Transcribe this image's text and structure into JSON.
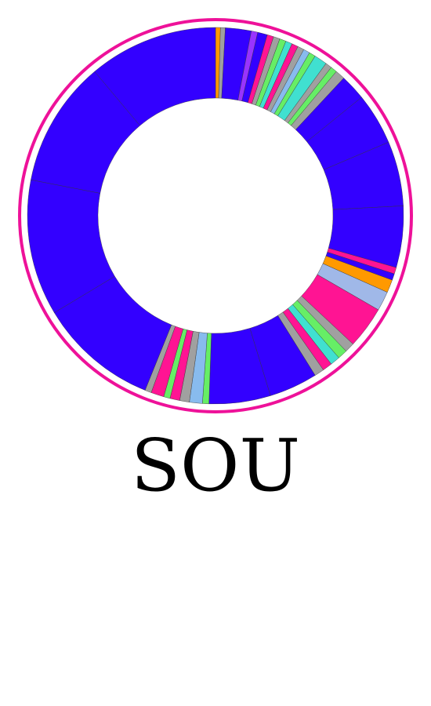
{
  "chart_data": {
    "type": "donut",
    "title": "SOU",
    "values": [
      1.5,
      1.5,
      8,
      2,
      3,
      2,
      2,
      2,
      2,
      2,
      2,
      2,
      2,
      4,
      2,
      2,
      3,
      8,
      16,
      20,
      19,
      2,
      2,
      4,
      6,
      13,
      3,
      3,
      3,
      3,
      3,
      15,
      19,
      2,
      4,
      3,
      3,
      2,
      4,
      2,
      37,
      42,
      39,
      40
    ],
    "colors": [
      "#ff9900",
      "#a0a0a0",
      "#3300ff",
      "#9933ff",
      "#3300ff",
      "#ff1493",
      "#a0a0a0",
      "#66ee66",
      "#40e0d0",
      "#ff1493",
      "#a0a0a0",
      "#88bbee",
      "#66ee66",
      "#40e0d0",
      "#a0a0a0",
      "#66ee66",
      "#a0a0a0",
      "#3300ff",
      "#3300ff",
      "#3300ff",
      "#3300ff",
      "#ff1493",
      "#3300ff",
      "#ff9900",
      "#a0b8e8",
      "#ff1493",
      "#a0a0a0",
      "#66ee66",
      "#40e0d0",
      "#ff1493",
      "#a0a0a0",
      "#3300ff",
      "#3300ff",
      "#66ee66",
      "#88bbee",
      "#a0a0a0",
      "#ff1493",
      "#66ee66",
      "#ff1493",
      "#a0a0a0",
      "#3300ff",
      "#3300ff",
      "#3300ff",
      "#3300ff"
    ],
    "ring_color": "#ee1199"
  }
}
